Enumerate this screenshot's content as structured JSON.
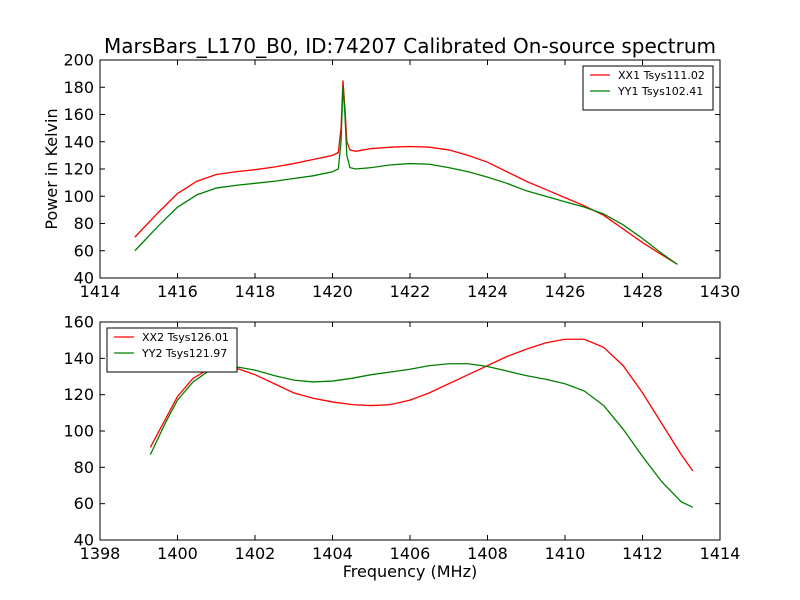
{
  "title": "MarsBars_L170_B0, ID:74207 Calibrated On-source spectrum",
  "chart_data": [
    {
      "type": "line",
      "xlim": [
        1414,
        1430
      ],
      "ylim": [
        40,
        200
      ],
      "xticks": [
        1414,
        1416,
        1418,
        1420,
        1422,
        1424,
        1426,
        1428,
        1430
      ],
      "yticks": [
        40,
        60,
        80,
        100,
        120,
        140,
        160,
        180,
        200
      ],
      "xlabel": "",
      "ylabel": "Power in Kelvin",
      "legend_position": "top-right",
      "series": [
        {
          "name": "XX1 Tsys111.02",
          "color": "#ff0000",
          "x": [
            1414.9,
            1415.5,
            1416.0,
            1416.5,
            1417.0,
            1417.5,
            1418.0,
            1418.5,
            1419.0,
            1419.5,
            1420.0,
            1420.15,
            1420.22,
            1420.27,
            1420.32,
            1420.37,
            1420.45,
            1420.6,
            1421.0,
            1421.5,
            1422.0,
            1422.5,
            1423.0,
            1423.5,
            1424.0,
            1424.5,
            1425.0,
            1425.5,
            1426.0,
            1426.5,
            1427.0,
            1427.5,
            1428.0,
            1428.5,
            1428.9
          ],
          "y": [
            70,
            88,
            102,
            111,
            116,
            118,
            119.5,
            121.5,
            124,
            127,
            130,
            132,
            150,
            185,
            165,
            140,
            134,
            133,
            135,
            136,
            136.5,
            136,
            134,
            130,
            125,
            118,
            111,
            105,
            99,
            93,
            86,
            76,
            66,
            57,
            50
          ]
        },
        {
          "name": "YY1 Tsys102.41",
          "color": "#008000",
          "x": [
            1414.9,
            1415.5,
            1416.0,
            1416.5,
            1417.0,
            1417.5,
            1418.0,
            1418.5,
            1419.0,
            1419.5,
            1420.0,
            1420.15,
            1420.22,
            1420.27,
            1420.32,
            1420.37,
            1420.45,
            1420.6,
            1421.0,
            1421.5,
            1422.0,
            1422.5,
            1423.0,
            1423.5,
            1424.0,
            1424.5,
            1425.0,
            1425.5,
            1426.0,
            1426.5,
            1427.0,
            1427.5,
            1428.0,
            1428.5,
            1428.9
          ],
          "y": [
            60,
            78,
            92,
            101,
            106,
            108,
            109.5,
            111,
            113,
            115,
            118,
            120,
            140,
            181,
            160,
            130,
            121,
            120,
            121,
            123,
            124,
            123.5,
            121,
            118,
            114,
            109.5,
            104,
            100,
            96,
            92,
            87,
            79,
            69,
            58,
            50
          ]
        }
      ]
    },
    {
      "type": "line",
      "xlim": [
        1398,
        1414
      ],
      "ylim": [
        40,
        160
      ],
      "xticks": [
        1398,
        1400,
        1402,
        1404,
        1406,
        1408,
        1410,
        1412,
        1414
      ],
      "yticks": [
        40,
        60,
        80,
        100,
        120,
        140,
        160
      ],
      "xlabel": "Frequency (MHz)",
      "ylabel": "",
      "legend_position": "top-left",
      "series": [
        {
          "name": "XX2 Tsys126.01",
          "color": "#ff0000",
          "x": [
            1399.3,
            1399.7,
            1400.0,
            1400.4,
            1400.8,
            1401.2,
            1401.6,
            1402.0,
            1402.5,
            1403.0,
            1403.5,
            1404.0,
            1404.5,
            1405.0,
            1405.5,
            1406.0,
            1406.5,
            1407.0,
            1407.5,
            1408.0,
            1408.5,
            1409.0,
            1409.5,
            1410.0,
            1410.5,
            1411.0,
            1411.5,
            1412.0,
            1412.5,
            1413.0,
            1413.3
          ],
          "y": [
            91,
            107,
            119,
            129,
            134,
            135.5,
            134,
            131,
            126,
            121,
            118,
            116,
            114.5,
            114,
            114.5,
            117,
            121,
            126,
            131,
            136,
            141,
            145,
            148.5,
            150.5,
            150.5,
            146,
            136,
            121,
            104,
            87,
            78
          ]
        },
        {
          "name": "YY2 Tsys121.97",
          "color": "#008000",
          "x": [
            1399.3,
            1399.7,
            1400.0,
            1400.4,
            1400.8,
            1401.2,
            1401.6,
            1402.0,
            1402.5,
            1403.0,
            1403.5,
            1404.0,
            1404.5,
            1405.0,
            1405.5,
            1406.0,
            1406.5,
            1407.0,
            1407.5,
            1408.0,
            1408.5,
            1409.0,
            1409.5,
            1410.0,
            1410.5,
            1411.0,
            1411.5,
            1412.0,
            1412.5,
            1413.0,
            1413.3
          ],
          "y": [
            87,
            105,
            117,
            127,
            133,
            135,
            135,
            133.5,
            130.5,
            128,
            127,
            127.5,
            129,
            131,
            132.5,
            134,
            136,
            137,
            137,
            135.5,
            133,
            130.5,
            128.5,
            126,
            122,
            114,
            101,
            86,
            72,
            61,
            58
          ]
        }
      ]
    }
  ]
}
